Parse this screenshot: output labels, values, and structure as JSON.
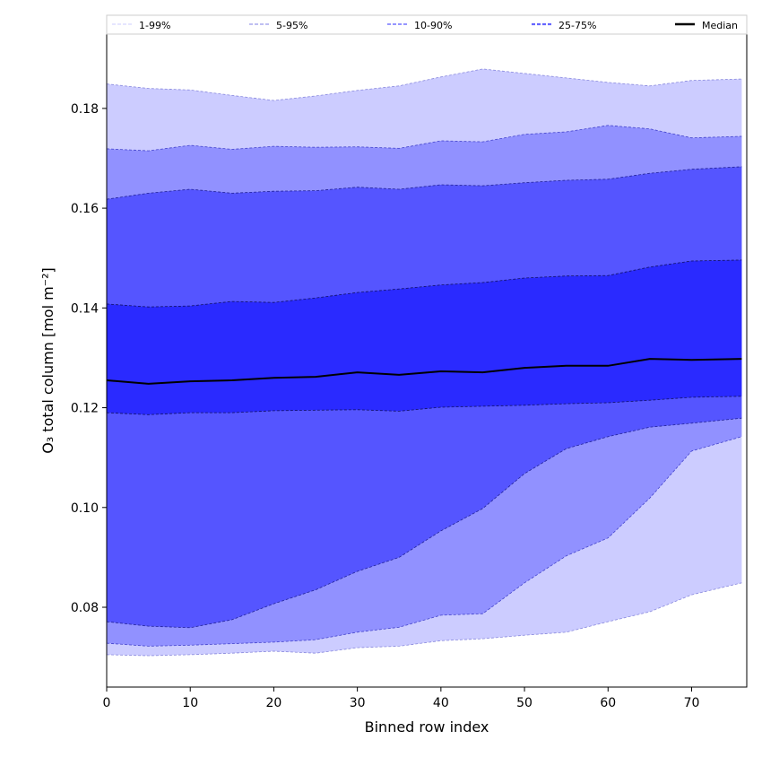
{
  "chart_data": {
    "type": "area",
    "title": "",
    "xlabel": "Binned row index",
    "ylabel": "O₃ total column [mol m⁻²]",
    "xlim": [
      0,
      76.6
    ],
    "ylim": [
      0.064,
      0.1949
    ],
    "xticks": [
      0,
      10,
      20,
      30,
      40,
      50,
      60,
      70
    ],
    "yticks": [
      0.08,
      0.1,
      0.12,
      0.14,
      0.16,
      0.18
    ],
    "xtick_labels": [
      "0",
      "10",
      "20",
      "30",
      "40",
      "50",
      "60",
      "70"
    ],
    "ytick_labels": [
      "0.08",
      "0.10",
      "0.12",
      "0.14",
      "0.16",
      "0.18"
    ],
    "grid": false,
    "legend_position": "top",
    "x": [
      0,
      5,
      10,
      15,
      20,
      25,
      30,
      35,
      40,
      45,
      50,
      55,
      60,
      65,
      70,
      76
    ],
    "bands": [
      {
        "name": "1-99%",
        "color": "#ccccff",
        "edge": "#8888dd",
        "lower": [
          0.0705,
          0.0703,
          0.0705,
          0.0708,
          0.0712,
          0.0708,
          0.0719,
          0.0722,
          0.0733,
          0.0737,
          0.0744,
          0.075,
          0.0771,
          0.0791,
          0.0825,
          0.0849
        ],
        "upper": [
          0.1849,
          0.184,
          0.1837,
          0.1826,
          0.1816,
          0.1825,
          0.1836,
          0.1845,
          0.1863,
          0.1879,
          0.187,
          0.1861,
          0.1852,
          0.1845,
          0.1856,
          0.1859
        ]
      },
      {
        "name": "5-95%",
        "color": "#9191ff",
        "edge": "#4444cc",
        "lower": [
          0.0728,
          0.0722,
          0.0724,
          0.0727,
          0.073,
          0.0735,
          0.075,
          0.076,
          0.0784,
          0.0787,
          0.0849,
          0.0903,
          0.0939,
          0.1019,
          0.1113,
          0.1142
        ],
        "upper": [
          0.1719,
          0.1715,
          0.1726,
          0.1718,
          0.1724,
          0.1722,
          0.1723,
          0.172,
          0.1735,
          0.1733,
          0.1748,
          0.1753,
          0.1766,
          0.1759,
          0.1741,
          0.1744
        ]
      },
      {
        "name": "10-90%",
        "color": "#5555ff",
        "edge": "#222299",
        "lower": [
          0.0771,
          0.0762,
          0.0759,
          0.0775,
          0.0807,
          0.0835,
          0.0872,
          0.09,
          0.0953,
          0.0998,
          0.1068,
          0.1118,
          0.1142,
          0.1161,
          0.1169,
          0.1179
        ],
        "upper": [
          0.1618,
          0.163,
          0.1638,
          0.163,
          0.1634,
          0.1635,
          0.1642,
          0.1638,
          0.1647,
          0.1645,
          0.1651,
          0.1656,
          0.1658,
          0.167,
          0.1678,
          0.1683
        ]
      },
      {
        "name": "25-75%",
        "color": "#2a2aff",
        "edge": "#111166",
        "lower": [
          0.119,
          0.1186,
          0.119,
          0.119,
          0.1194,
          0.1195,
          0.1196,
          0.1193,
          0.1201,
          0.1203,
          0.1205,
          0.1208,
          0.121,
          0.1215,
          0.1221,
          0.1223
        ],
        "upper": [
          0.1408,
          0.1402,
          0.1404,
          0.1413,
          0.1411,
          0.142,
          0.1431,
          0.1438,
          0.1446,
          0.1451,
          0.146,
          0.1464,
          0.1465,
          0.1482,
          0.1494,
          0.1496
        ]
      }
    ],
    "median": {
      "name": "Median",
      "color": "#000000",
      "values": [
        0.1255,
        0.1248,
        0.1253,
        0.1255,
        0.126,
        0.1262,
        0.1271,
        0.1266,
        0.1273,
        0.1271,
        0.128,
        0.1284,
        0.1284,
        0.1298,
        0.1296,
        0.1298
      ]
    },
    "legend": [
      {
        "label": "1-99%",
        "color": "#ccccff"
      },
      {
        "label": "5-95%",
        "color": "#aaaaee"
      },
      {
        "label": "10-90%",
        "color": "#8888ff"
      },
      {
        "label": "25-75%",
        "color": "#6666ff"
      },
      {
        "label": "Median",
        "color": "#000000"
      }
    ]
  }
}
